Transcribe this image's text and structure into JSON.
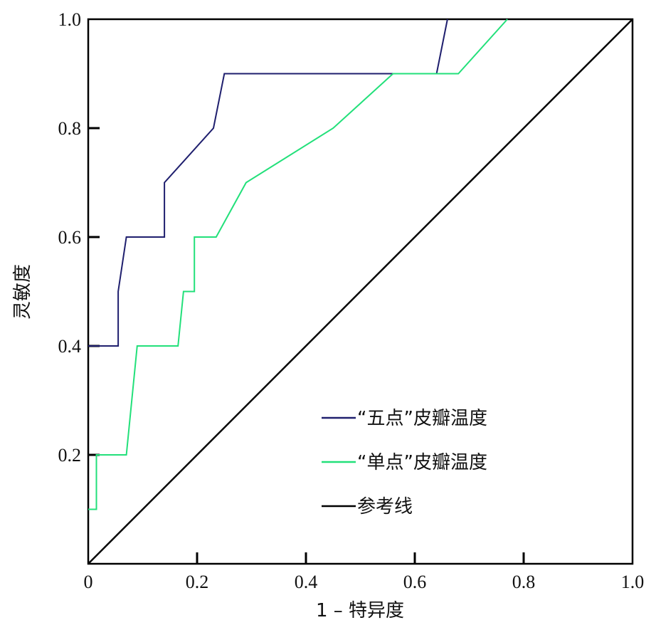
{
  "chart_data": {
    "type": "line",
    "title": "",
    "xlabel": "1 – 特异度",
    "ylabel": "灵敏度",
    "xlim": [
      0,
      1
    ],
    "ylim": [
      0,
      1
    ],
    "x_ticks": [
      "0",
      "0.2",
      "0.4",
      "0.6",
      "0.8",
      "1.0"
    ],
    "y_ticks": [
      "0.2",
      "0.4",
      "0.6",
      "0.8",
      "1.0"
    ],
    "grid": false,
    "legend_position": "bottom-right",
    "series": [
      {
        "name": "“五点”皮瓣温度",
        "color": "#1f1f6e",
        "points": [
          [
            0,
            0.4
          ],
          [
            0.055,
            0.4
          ],
          [
            0.055,
            0.5
          ],
          [
            0.07,
            0.6
          ],
          [
            0.14,
            0.6
          ],
          [
            0.14,
            0.7
          ],
          [
            0.23,
            0.8
          ],
          [
            0.25,
            0.9
          ],
          [
            0.64,
            0.9
          ],
          [
            0.66,
            1.0
          ]
        ]
      },
      {
        "name": "“单点”皮瓣温度",
        "color": "#22e07a",
        "points": [
          [
            0,
            0.1
          ],
          [
            0.015,
            0.1
          ],
          [
            0.015,
            0.2
          ],
          [
            0.07,
            0.2
          ],
          [
            0.09,
            0.4
          ],
          [
            0.165,
            0.4
          ],
          [
            0.175,
            0.5
          ],
          [
            0.195,
            0.5
          ],
          [
            0.195,
            0.6
          ],
          [
            0.235,
            0.6
          ],
          [
            0.29,
            0.7
          ],
          [
            0.45,
            0.8
          ],
          [
            0.56,
            0.9
          ],
          [
            0.68,
            0.9
          ],
          [
            0.77,
            1.0
          ]
        ]
      },
      {
        "name": "参考线",
        "color": "#000000",
        "points": [
          [
            0,
            0
          ],
          [
            1,
            1
          ]
        ]
      }
    ]
  }
}
